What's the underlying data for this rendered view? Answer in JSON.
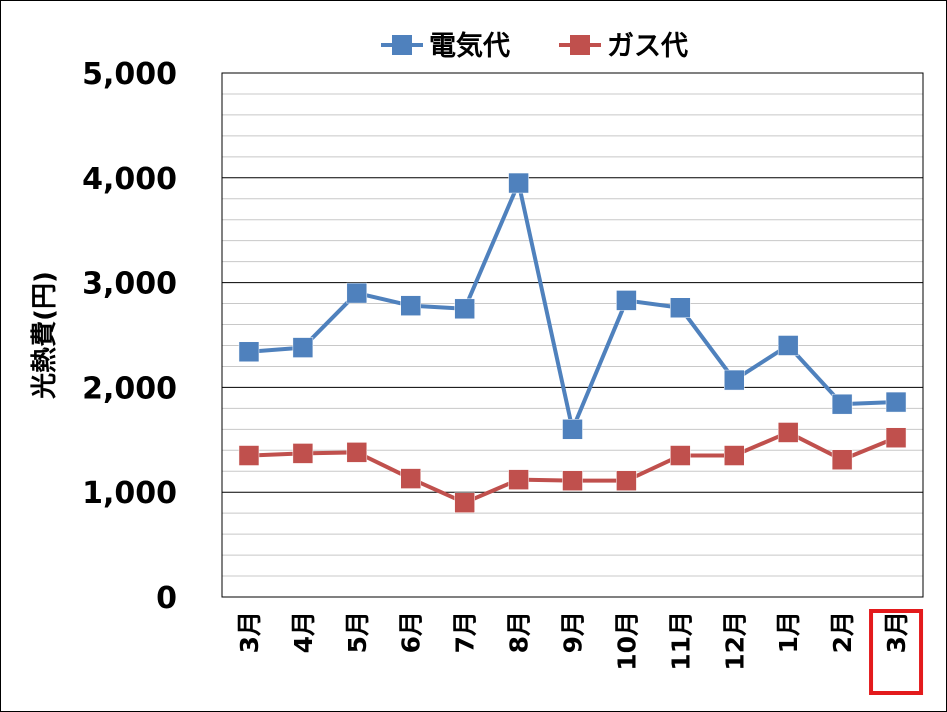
{
  "chart_data": {
    "type": "line",
    "categories": [
      "3月",
      "4月",
      "5月",
      "6月",
      "7月",
      "8月",
      "9月",
      "10月",
      "11月",
      "12月",
      "1月",
      "2月",
      "3月"
    ],
    "series": [
      {
        "name": "電気代",
        "color": "#4F81BD",
        "marker": "square",
        "values": [
          2340,
          2380,
          2900,
          2780,
          2750,
          3950,
          1600,
          2830,
          2760,
          2070,
          2400,
          1840,
          1860
        ]
      },
      {
        "name": "ガス代",
        "color": "#C0504D",
        "marker": "square",
        "values": [
          1350,
          1370,
          1380,
          1130,
          900,
          1120,
          1110,
          1110,
          1350,
          1350,
          1570,
          1310,
          1520
        ]
      }
    ],
    "ylabel": "光熱費(円)",
    "xlabel": "",
    "ylim": [
      0,
      5000
    ],
    "yticks": [
      0,
      1000,
      2000,
      3000,
      4000,
      5000
    ],
    "ytick_labels": [
      "0",
      "1,000",
      "2,000",
      "3,000",
      "4,000",
      "5,000"
    ],
    "grid": "horizontal major and minor",
    "legend_position": "top-center",
    "highlighted_category_index": 12,
    "highlight_color": "#E31A1C"
  }
}
